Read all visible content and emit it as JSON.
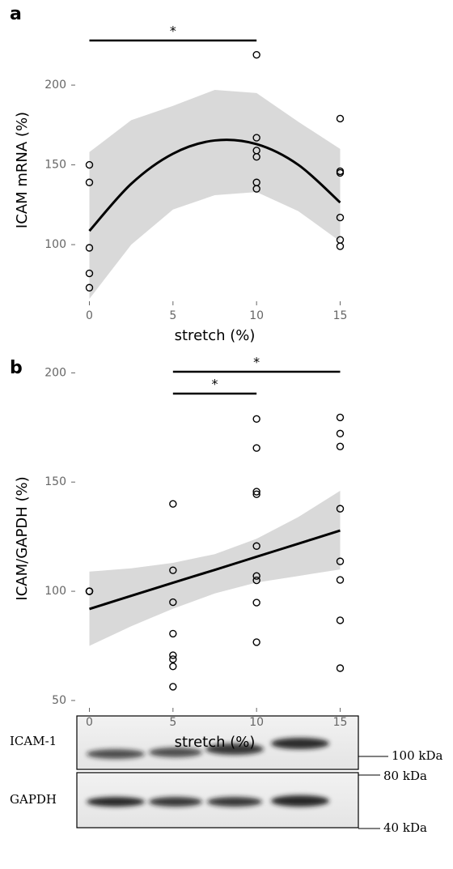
{
  "chart_data": [
    {
      "type": "scatter",
      "panel": "a",
      "ylabel": "ICAM mRNA (%)",
      "xlabel": "stretch (%)",
      "xlim": [
        -0.75,
        15.75
      ],
      "ylim": [
        65,
        230
      ],
      "xticks": [
        0,
        5,
        10,
        15
      ],
      "yticks": [
        100,
        150,
        200
      ],
      "point_color": "#000000",
      "band_color": "#d9d9d9",
      "line_color": "#000000",
      "points": {
        "x": [
          0,
          0,
          0,
          0,
          0,
          10,
          10,
          10,
          10,
          10,
          10,
          15,
          15,
          15,
          15,
          15,
          15
        ],
        "y": [
          150,
          139,
          98,
          82,
          73,
          219,
          167,
          159,
          155,
          139,
          135,
          179,
          146,
          145,
          117,
          103,
          99
        ]
      },
      "fit": {
        "x": [
          0,
          2.5,
          5,
          7.5,
          10,
          12.5,
          15
        ],
        "y": [
          108.6,
          138.1,
          157.0,
          165.3,
          163.0,
          150.0,
          126.4
        ],
        "upper": [
          158,
          178,
          187,
          197,
          195,
          177,
          160
        ],
        "lower": [
          66,
          100,
          122,
          131,
          133,
          121,
          102
        ]
      },
      "significance": [
        {
          "from": 0,
          "to": 10,
          "label": "*"
        }
      ]
    },
    {
      "type": "scatter",
      "panel": "b",
      "ylabel": "ICAM/GAPDH (%)",
      "xlabel": "stretch (%)",
      "xlim": [
        -0.75,
        15.75
      ],
      "ylim": [
        47,
        202
      ],
      "xticks": [
        0,
        5,
        10,
        15
      ],
      "yticks": [
        50,
        100,
        150,
        200
      ],
      "point_color": "#000000",
      "band_color": "#d9d9d9",
      "line_color": "#000000",
      "points": {
        "x": [
          0,
          0,
          0,
          5,
          5,
          5,
          5,
          5,
          5,
          5,
          5,
          10,
          10,
          10,
          10,
          10,
          10,
          10,
          10,
          10,
          15,
          15,
          15,
          15,
          15,
          15,
          15,
          15
        ],
        "y": [
          100,
          100,
          100,
          140,
          109.6,
          95,
          80.6,
          70.7,
          68.9,
          65.6,
          56.3,
          178.9,
          165.6,
          145.6,
          144.4,
          120.7,
          107,
          105,
          94.8,
          76.7,
          179.6,
          172.2,
          166.3,
          137.8,
          113.7,
          105.2,
          86.7,
          64.8
        ]
      },
      "fit": {
        "x": [
          0,
          2.5,
          5,
          7.5,
          10,
          12.5,
          15
        ],
        "y": [
          91.9,
          97.9,
          103.9,
          109.8,
          115.8,
          121.8,
          127.8
        ],
        "upper": [
          109,
          110.5,
          113,
          117,
          124,
          134,
          146
        ],
        "lower": [
          75,
          84,
          92,
          99,
          104,
          107,
          110
        ]
      },
      "significance": [
        {
          "from": 5,
          "to": 15,
          "label": "*"
        },
        {
          "from": 5,
          "to": 10,
          "label": "*"
        }
      ]
    }
  ],
  "blot": {
    "rows": [
      "ICAM-1",
      "GAPDH"
    ],
    "markers": [
      "100 kDa",
      "80 kDa",
      "40 kDa"
    ]
  }
}
